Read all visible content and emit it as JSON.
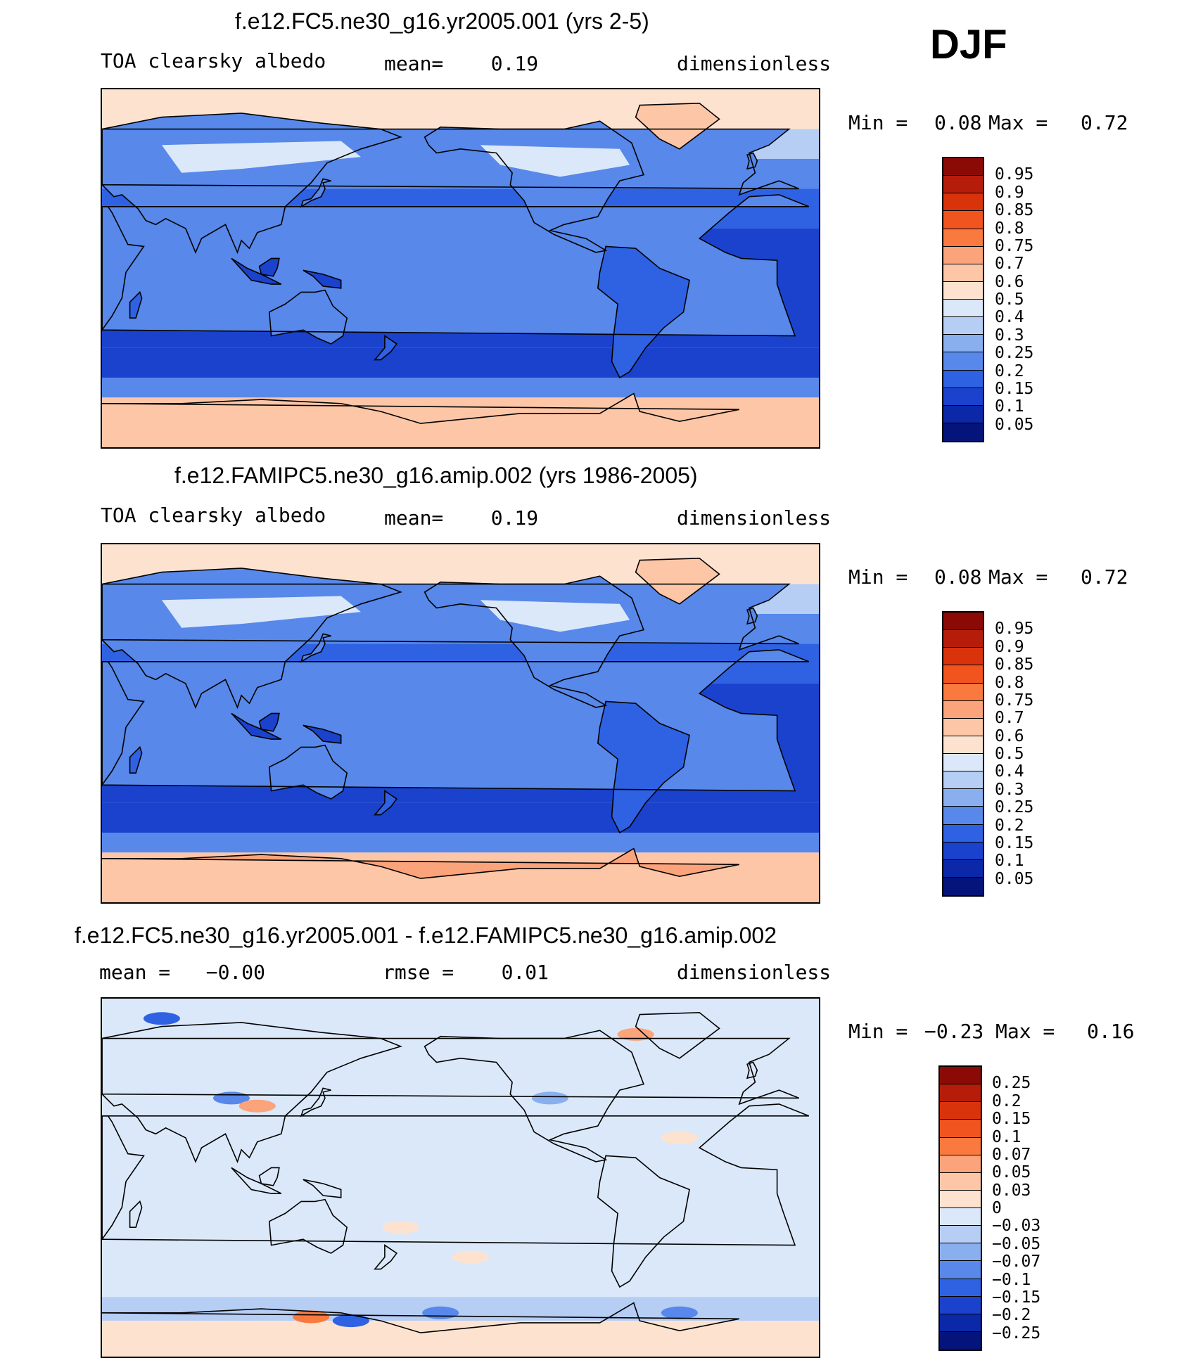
{
  "season": "DJF",
  "panels": [
    {
      "title": "f.e12.FC5.ne30_g16.yr2005.001 (yrs 2-5)",
      "left_text": "TOA clearsky albedo",
      "center_text": "mean=    0.19",
      "units": "dimensionless",
      "min_label": "Min =",
      "min_value": "0.08",
      "max_label": "Max =",
      "max_value": "0.72",
      "scale": "abs"
    },
    {
      "title": "f.e12.FAMIPC5.ne30_g16.amip.002 (yrs 1986-2005)",
      "left_text": "TOA clearsky albedo",
      "center_text": "mean=    0.19",
      "units": "dimensionless",
      "min_label": "Min =",
      "min_value": "0.08",
      "max_label": "Max =",
      "max_value": "0.72",
      "scale": "abs"
    },
    {
      "title": "f.e12.FC5.ne30_g16.yr2005.001 - f.e12.FAMIPC5.ne30_g16.amip.002",
      "left_text": "mean =   −0.00",
      "center_text": "rmse =    0.01",
      "units": "dimensionless",
      "min_label": "Min =",
      "min_value": "−0.23",
      "max_label": "Max =",
      "max_value": "0.16",
      "scale": "diff"
    }
  ],
  "colorbars": {
    "abs": {
      "labels": [
        "0.95",
        "0.9",
        "0.85",
        "0.8",
        "0.75",
        "0.7",
        "0.6",
        "0.5",
        "0.4",
        "0.3",
        "0.25",
        "0.2",
        "0.15",
        "0.1",
        "0.05"
      ],
      "colors": [
        "#8b0a05",
        "#b51d0a",
        "#d9330c",
        "#f1541e",
        "#f9793f",
        "#fba37b",
        "#fcc6a7",
        "#fde3cf",
        "#dbe8f9",
        "#b6cdf4",
        "#8aafef",
        "#5788ea",
        "#2f62e2",
        "#1a42cc",
        "#0a28a8",
        "#04147a"
      ]
    },
    "diff": {
      "labels": [
        "0.25",
        "0.2",
        "0.15",
        "0.1",
        "0.07",
        "0.05",
        "0.03",
        "0",
        "−0.03",
        "−0.05",
        "−0.07",
        "−0.1",
        "−0.15",
        "−0.2",
        "−0.25"
      ],
      "colors": [
        "#8b0a05",
        "#b51d0a",
        "#d9330c",
        "#f1541e",
        "#f9793f",
        "#fba37b",
        "#fcc6a7",
        "#fde3cf",
        "#dbe8f9",
        "#b6cdf4",
        "#8aafef",
        "#5788ea",
        "#2f62e2",
        "#1a42cc",
        "#0a28a8",
        "#04147a"
      ]
    }
  },
  "chart_data": [
    {
      "type": "heatmap",
      "title": "f.e12.FC5.ne30_g16.yr2005.001 (yrs 2-5)",
      "variable": "TOA clearsky albedo",
      "mean": 0.19,
      "min": 0.08,
      "max": 0.72,
      "units": "dimensionless",
      "levels": [
        0.05,
        0.1,
        0.15,
        0.2,
        0.25,
        0.3,
        0.4,
        0.5,
        0.6,
        0.7,
        0.75,
        0.8,
        0.85,
        0.9,
        0.95
      ],
      "lat_bands": [
        {
          "lat": [
            70,
            90
          ],
          "value": 0.55
        },
        {
          "lat": [
            55,
            70
          ],
          "value": 0.38
        },
        {
          "lat": [
            40,
            55
          ],
          "value": 0.22
        },
        {
          "lat": [
            20,
            40
          ],
          "value": 0.17
        },
        {
          "lat": [
            -40,
            20
          ],
          "value": 0.11
        },
        {
          "lat": [
            -55,
            -40
          ],
          "value": 0.14
        },
        {
          "lat": [
            -65,
            -55
          ],
          "value": 0.2
        },
        {
          "lat": [
            -90,
            -65
          ],
          "value": 0.65
        }
      ]
    },
    {
      "type": "heatmap",
      "title": "f.e12.FAMIPC5.ne30_g16.amip.002 (yrs 1986-2005)",
      "variable": "TOA clearsky albedo",
      "mean": 0.19,
      "min": 0.08,
      "max": 0.72,
      "units": "dimensionless",
      "levels": [
        0.05,
        0.1,
        0.15,
        0.2,
        0.25,
        0.3,
        0.4,
        0.5,
        0.6,
        0.7,
        0.75,
        0.8,
        0.85,
        0.9,
        0.95
      ],
      "lat_bands": [
        {
          "lat": [
            70,
            90
          ],
          "value": 0.55
        },
        {
          "lat": [
            55,
            70
          ],
          "value": 0.38
        },
        {
          "lat": [
            40,
            55
          ],
          "value": 0.22
        },
        {
          "lat": [
            20,
            40
          ],
          "value": 0.17
        },
        {
          "lat": [
            -40,
            20
          ],
          "value": 0.11
        },
        {
          "lat": [
            -55,
            -40
          ],
          "value": 0.14
        },
        {
          "lat": [
            -65,
            -55
          ],
          "value": 0.2
        },
        {
          "lat": [
            -90,
            -65
          ],
          "value": 0.68
        }
      ]
    },
    {
      "type": "heatmap",
      "title": "f.e12.FC5.ne30_g16.yr2005.001 - f.e12.FAMIPC5.ne30_g16.amip.002",
      "mean": -0.0,
      "rmse": 0.01,
      "min": -0.23,
      "max": 0.16,
      "units": "dimensionless",
      "levels": [
        -0.25,
        -0.2,
        -0.15,
        -0.1,
        -0.07,
        -0.05,
        -0.03,
        0,
        0.03,
        0.05,
        0.07,
        0.1,
        0.15,
        0.2,
        0.25
      ],
      "lat_bands": [
        {
          "lat": [
            -60,
            90
          ],
          "value": -0.01
        },
        {
          "lat": [
            -72,
            -60
          ],
          "value": -0.05
        },
        {
          "lat": [
            -90,
            -72
          ],
          "value": 0.01
        }
      ]
    }
  ]
}
